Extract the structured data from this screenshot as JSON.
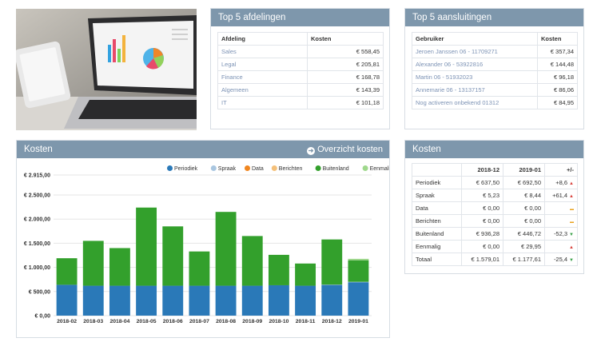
{
  "top_departments": {
    "title": "Top 5 afdelingen",
    "columns": [
      "Afdeling",
      "Kosten"
    ],
    "rows": [
      {
        "name": "Sales",
        "cost": "€ 558,45"
      },
      {
        "name": "Legal",
        "cost": "€ 205,81"
      },
      {
        "name": "Finance",
        "cost": "€ 168,78"
      },
      {
        "name": "Algemeen",
        "cost": "€ 143,39"
      },
      {
        "name": "IT",
        "cost": "€ 101,18"
      }
    ]
  },
  "top_connections": {
    "title": "Top 5 aansluitingen",
    "columns": [
      "Gebruiker",
      "Kosten"
    ],
    "rows": [
      {
        "name": "Jeroen Janssen 06 - 11709271",
        "cost": "€ 357,34"
      },
      {
        "name": "Alexander 06 - 53922816",
        "cost": "€ 144,48"
      },
      {
        "name": "Martin 06 - 51932023",
        "cost": "€ 96,18"
      },
      {
        "name": "Annemarie 06 - 13137157",
        "cost": "€ 86,06"
      },
      {
        "name": "Nog activeren onbekend 01312",
        "cost": "€ 84,95"
      }
    ]
  },
  "costs_chart_panel": {
    "title": "Kosten",
    "overview_link": "Overzicht kosten"
  },
  "chart_data": {
    "type": "bar",
    "stacked": true,
    "categories": [
      "2018-02",
      "2018-03",
      "2018-04",
      "2018-05",
      "2018-06",
      "2018-07",
      "2018-08",
      "2018-09",
      "2018-10",
      "2018-11",
      "2018-12",
      "2019-01"
    ],
    "yticks": [
      "€ 0,00",
      "€ 500,00",
      "€ 1.000,00",
      "€ 1.500,00",
      "€ 2.000,00",
      "€ 2.500,00",
      "€ 2.915,00"
    ],
    "ytick_values": [
      0,
      500,
      1000,
      1500,
      2000,
      2500,
      2915
    ],
    "ylim": [
      0,
      2915
    ],
    "grid": true,
    "legend_position": "top-right",
    "series": [
      {
        "name": "Periodiek",
        "color": "#2a79b8",
        "values": [
          640,
          620,
          620,
          620,
          620,
          620,
          620,
          620,
          630,
          620,
          637.5,
          692.5
        ]
      },
      {
        "name": "Spraak",
        "color": "#a9c6e0",
        "values": [
          0,
          0,
          0,
          0,
          0,
          0,
          0,
          0,
          0,
          0,
          5.23,
          8.44
        ]
      },
      {
        "name": "Data",
        "color": "#f0861f",
        "values": [
          0,
          0,
          0,
          0,
          0,
          0,
          0,
          0,
          0,
          0,
          0,
          0
        ]
      },
      {
        "name": "Berichten",
        "color": "#f4c07a",
        "values": [
          0,
          0,
          0,
          0,
          0,
          0,
          0,
          0,
          0,
          0,
          0,
          0
        ]
      },
      {
        "name": "Buitenland",
        "color": "#33a02c",
        "values": [
          550,
          930,
          780,
          1620,
          1230,
          710,
          1530,
          1030,
          630,
          460,
          936.28,
          446.72
        ]
      },
      {
        "name": "Eenmalig",
        "color": "#9fd88c",
        "values": [
          0,
          0,
          0,
          0,
          0,
          0,
          0,
          0,
          0,
          0,
          0,
          29.95
        ]
      }
    ]
  },
  "costs_table": {
    "title": "Kosten",
    "columns": [
      "",
      "2018-12",
      "2019-01",
      "+/-"
    ],
    "rows": [
      {
        "label": "Periodiek",
        "a": "€ 637,50",
        "b": "€ 692,50",
        "diff": "+8,6",
        "trend": "up"
      },
      {
        "label": "Spraak",
        "a": "€ 5,23",
        "b": "€ 8,44",
        "diff": "+61,4",
        "trend": "up"
      },
      {
        "label": "Data",
        "a": "€ 0,00",
        "b": "€ 0,00",
        "diff": "",
        "trend": "flat"
      },
      {
        "label": "Berichten",
        "a": "€ 0,00",
        "b": "€ 0,00",
        "diff": "",
        "trend": "flat"
      },
      {
        "label": "Buitenland",
        "a": "€ 936,28",
        "b": "€ 446,72",
        "diff": "-52,3",
        "trend": "down"
      },
      {
        "label": "Eenmalig",
        "a": "€ 0,00",
        "b": "€ 29,95",
        "diff": "",
        "trend": "up"
      },
      {
        "label": "Totaal",
        "a": "€ 1.579,01",
        "b": "€ 1.177,61",
        "diff": "-25,4",
        "trend": "down"
      }
    ]
  }
}
